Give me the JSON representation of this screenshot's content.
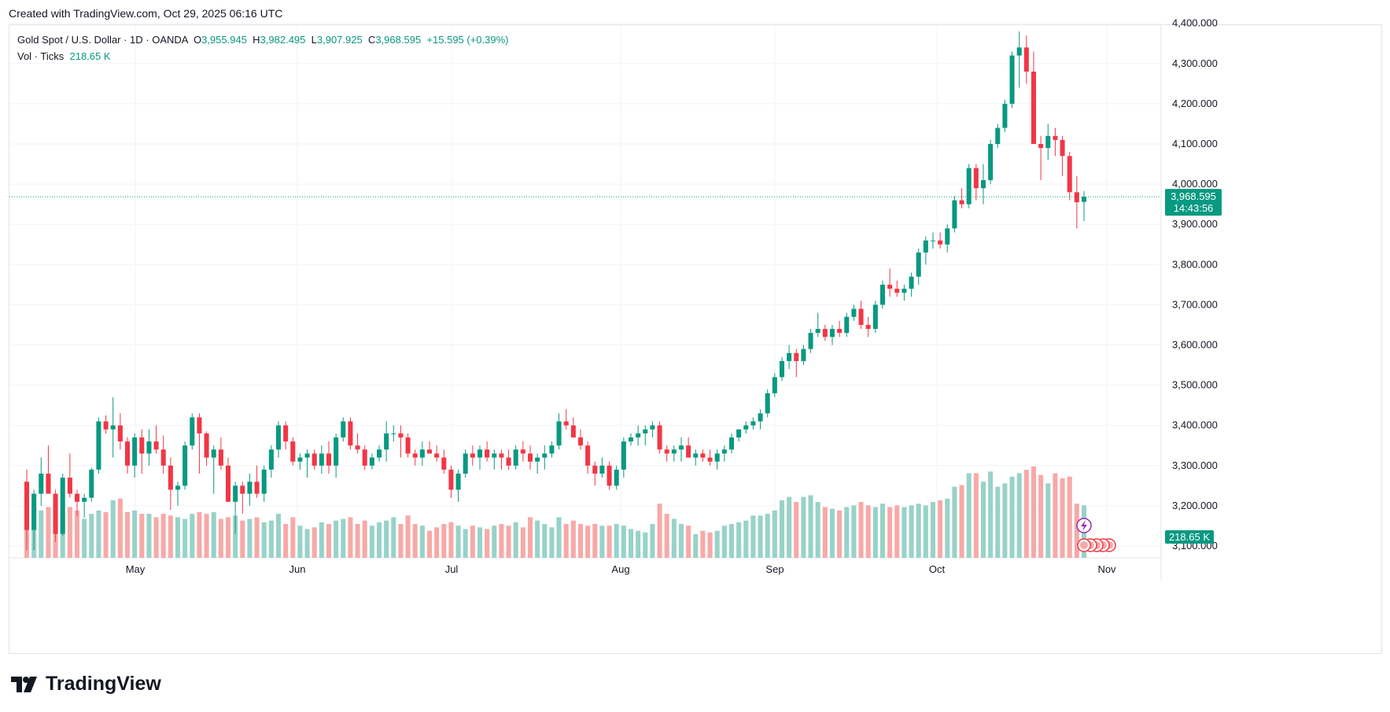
{
  "credit": "Created with TradingView.com, Oct 29, 2025 06:16 UTC",
  "brand": "TradingView",
  "legend": {
    "symbol": "Gold Spot / U.S. Dollar · 1D · OANDA",
    "o_label": "O",
    "o_value": "3,955.945",
    "h_label": "H",
    "h_value": "3,982.495",
    "l_label": "L",
    "l_value": "3,907.925",
    "c_label": "C",
    "c_value": "3,968.595",
    "change": "+15.595 (+0.39%)",
    "vol_label": "Vol · Ticks",
    "vol_value": "218.65 K"
  },
  "price_tag": {
    "price": "3,968.595",
    "countdown": "14:43:56"
  },
  "volume_tag": "218.65 K",
  "colors": {
    "up": "#089981",
    "down": "#f23645",
    "up_vol": "#98d2c8",
    "down_vol": "#f7a9a7",
    "grid": "#f0f3fa"
  },
  "chart_data": {
    "type": "candlestick",
    "x_tick_labels": [
      "May",
      "Jun",
      "Jul",
      "Aug",
      "Sep",
      "Oct",
      "Nov"
    ],
    "y_tick_labels": [
      "3,100.000",
      "3,200.000",
      "3,300.000",
      "3,400.000",
      "3,500.000",
      "3,600.000",
      "3,700.000",
      "3,800.000",
      "3,900.000",
      "4,000.000",
      "4,100.000",
      "4,200.000",
      "4,300.000",
      "4,400.000"
    ],
    "ylim": [
      3070,
      4400
    ],
    "candles": [
      [
        3260,
        3290,
        3090,
        3140,
        145
      ],
      [
        3140,
        3240,
        3090,
        3230,
        160
      ],
      [
        3230,
        3320,
        3200,
        3280,
        140
      ],
      [
        3280,
        3350,
        3230,
        3230,
        150
      ],
      [
        3230,
        3240,
        3110,
        3130,
        105
      ],
      [
        3130,
        3280,
        3125,
        3270,
        135
      ],
      [
        3270,
        3330,
        3220,
        3230,
        150
      ],
      [
        3230,
        3240,
        3175,
        3210,
        140
      ],
      [
        3210,
        3230,
        3170,
        3220,
        115
      ],
      [
        3220,
        3295,
        3210,
        3290,
        130
      ],
      [
        3290,
        3420,
        3280,
        3410,
        140
      ],
      [
        3410,
        3425,
        3380,
        3390,
        135
      ],
      [
        3390,
        3470,
        3320,
        3400,
        170
      ],
      [
        3400,
        3430,
        3340,
        3360,
        175
      ],
      [
        3360,
        3370,
        3280,
        3300,
        135
      ],
      [
        3300,
        3380,
        3270,
        3370,
        140
      ],
      [
        3370,
        3390,
        3280,
        3330,
        130
      ],
      [
        3330,
        3390,
        3300,
        3360,
        130
      ],
      [
        3360,
        3400,
        3330,
        3340,
        120
      ],
      [
        3340,
        3375,
        3280,
        3300,
        130
      ],
      [
        3300,
        3320,
        3190,
        3240,
        125
      ],
      [
        3240,
        3260,
        3200,
        3250,
        120
      ],
      [
        3250,
        3360,
        3240,
        3350,
        115
      ],
      [
        3350,
        3430,
        3340,
        3420,
        130
      ],
      [
        3420,
        3430,
        3280,
        3380,
        135
      ],
      [
        3380,
        3385,
        3300,
        3320,
        130
      ],
      [
        3320,
        3350,
        3230,
        3340,
        135
      ],
      [
        3340,
        3370,
        3290,
        3300,
        115
      ],
      [
        3300,
        3320,
        3210,
        3210,
        120
      ],
      [
        3210,
        3260,
        3130,
        3250,
        125
      ],
      [
        3250,
        3260,
        3180,
        3230,
        110
      ],
      [
        3230,
        3280,
        3200,
        3260,
        115
      ],
      [
        3260,
        3300,
        3220,
        3230,
        120
      ],
      [
        3230,
        3300,
        3210,
        3290,
        105
      ],
      [
        3290,
        3350,
        3270,
        3340,
        110
      ],
      [
        3340,
        3410,
        3320,
        3400,
        130
      ],
      [
        3400,
        3410,
        3340,
        3360,
        100
      ],
      [
        3360,
        3370,
        3300,
        3310,
        120
      ],
      [
        3310,
        3330,
        3290,
        3320,
        95
      ],
      [
        3320,
        3340,
        3270,
        3330,
        85
      ],
      [
        3330,
        3340,
        3290,
        3300,
        90
      ],
      [
        3300,
        3350,
        3280,
        3330,
        105
      ],
      [
        3330,
        3360,
        3280,
        3300,
        100
      ],
      [
        3300,
        3380,
        3270,
        3370,
        110
      ],
      [
        3370,
        3420,
        3360,
        3410,
        115
      ],
      [
        3410,
        3420,
        3340,
        3350,
        120
      ],
      [
        3350,
        3380,
        3330,
        3340,
        100
      ],
      [
        3340,
        3350,
        3290,
        3300,
        110
      ],
      [
        3300,
        3330,
        3290,
        3320,
        95
      ],
      [
        3320,
        3350,
        3310,
        3340,
        105
      ],
      [
        3340,
        3410,
        3310,
        3380,
        110
      ],
      [
        3380,
        3400,
        3360,
        3380,
        120
      ],
      [
        3380,
        3400,
        3320,
        3370,
        100
      ],
      [
        3370,
        3380,
        3320,
        3330,
        125
      ],
      [
        3330,
        3340,
        3300,
        3320,
        100
      ],
      [
        3320,
        3360,
        3300,
        3340,
        95
      ],
      [
        3340,
        3360,
        3330,
        3330,
        80
      ],
      [
        3330,
        3350,
        3310,
        3320,
        90
      ],
      [
        3320,
        3340,
        3280,
        3290,
        100
      ],
      [
        3290,
        3300,
        3220,
        3240,
        105
      ],
      [
        3240,
        3290,
        3210,
        3280,
        95
      ],
      [
        3280,
        3340,
        3270,
        3330,
        85
      ],
      [
        3330,
        3350,
        3300,
        3320,
        95
      ],
      [
        3320,
        3350,
        3290,
        3340,
        90
      ],
      [
        3340,
        3360,
        3310,
        3320,
        85
      ],
      [
        3320,
        3340,
        3290,
        3330,
        95
      ],
      [
        3330,
        3340,
        3290,
        3320,
        100
      ],
      [
        3320,
        3340,
        3290,
        3300,
        95
      ],
      [
        3300,
        3350,
        3290,
        3340,
        105
      ],
      [
        3340,
        3360,
        3310,
        3330,
        90
      ],
      [
        3330,
        3350,
        3290,
        3310,
        120
      ],
      [
        3310,
        3330,
        3280,
        3320,
        110
      ],
      [
        3320,
        3350,
        3290,
        3330,
        100
      ],
      [
        3330,
        3360,
        3320,
        3350,
        90
      ],
      [
        3350,
        3430,
        3340,
        3410,
        120
      ],
      [
        3410,
        3440,
        3390,
        3400,
        100
      ],
      [
        3400,
        3420,
        3370,
        3370,
        110
      ],
      [
        3370,
        3390,
        3340,
        3350,
        100
      ],
      [
        3350,
        3360,
        3280,
        3300,
        95
      ],
      [
        3300,
        3310,
        3250,
        3280,
        100
      ],
      [
        3280,
        3320,
        3270,
        3300,
        95
      ],
      [
        3300,
        3310,
        3240,
        3250,
        95
      ],
      [
        3250,
        3300,
        3240,
        3290,
        100
      ],
      [
        3290,
        3370,
        3270,
        3360,
        95
      ],
      [
        3360,
        3380,
        3350,
        3370,
        85
      ],
      [
        3370,
        3400,
        3350,
        3380,
        80
      ],
      [
        3380,
        3400,
        3350,
        3390,
        75
      ],
      [
        3390,
        3410,
        3370,
        3400,
        100
      ],
      [
        3400,
        3410,
        3330,
        3340,
        160
      ],
      [
        3340,
        3350,
        3310,
        3330,
        130
      ],
      [
        3330,
        3350,
        3310,
        3340,
        115
      ],
      [
        3340,
        3370,
        3310,
        3350,
        100
      ],
      [
        3350,
        3370,
        3320,
        3320,
        95
      ],
      [
        3320,
        3340,
        3300,
        3330,
        70
      ],
      [
        3330,
        3340,
        3310,
        3320,
        80
      ],
      [
        3320,
        3340,
        3300,
        3310,
        75
      ],
      [
        3310,
        3340,
        3290,
        3330,
        80
      ],
      [
        3330,
        3350,
        3310,
        3340,
        95
      ],
      [
        3340,
        3380,
        3330,
        3370,
        100
      ],
      [
        3370,
        3390,
        3360,
        3390,
        105
      ],
      [
        3390,
        3410,
        3380,
        3400,
        110
      ],
      [
        3400,
        3420,
        3390,
        3410,
        125
      ],
      [
        3410,
        3440,
        3390,
        3430,
        125
      ],
      [
        3430,
        3490,
        3420,
        3480,
        130
      ],
      [
        3480,
        3530,
        3470,
        3520,
        140
      ],
      [
        3520,
        3570,
        3510,
        3560,
        170
      ],
      [
        3560,
        3600,
        3540,
        3580,
        180
      ],
      [
        3580,
        3590,
        3520,
        3560,
        165
      ],
      [
        3560,
        3600,
        3550,
        3590,
        180
      ],
      [
        3590,
        3640,
        3580,
        3630,
        185
      ],
      [
        3630,
        3680,
        3620,
        3640,
        165
      ],
      [
        3640,
        3650,
        3610,
        3620,
        150
      ],
      [
        3620,
        3650,
        3600,
        3640,
        145
      ],
      [
        3640,
        3660,
        3620,
        3630,
        140
      ],
      [
        3630,
        3680,
        3620,
        3670,
        150
      ],
      [
        3670,
        3700,
        3660,
        3690,
        155
      ],
      [
        3690,
        3710,
        3640,
        3650,
        165
      ],
      [
        3650,
        3670,
        3620,
        3640,
        155
      ],
      [
        3640,
        3710,
        3630,
        3700,
        150
      ],
      [
        3700,
        3760,
        3690,
        3750,
        160
      ],
      [
        3750,
        3790,
        3720,
        3740,
        150
      ],
      [
        3740,
        3760,
        3720,
        3730,
        155
      ],
      [
        3730,
        3750,
        3710,
        3740,
        150
      ],
      [
        3740,
        3780,
        3720,
        3770,
        155
      ],
      [
        3770,
        3840,
        3750,
        3830,
        160
      ],
      [
        3830,
        3870,
        3800,
        3860,
        155
      ],
      [
        3860,
        3880,
        3840,
        3860,
        165
      ],
      [
        3860,
        3880,
        3840,
        3850,
        170
      ],
      [
        3850,
        3900,
        3830,
        3890,
        175
      ],
      [
        3890,
        3970,
        3880,
        3960,
        210
      ],
      [
        3960,
        3990,
        3940,
        3950,
        215
      ],
      [
        3950,
        4050,
        3940,
        4040,
        250
      ],
      [
        4040,
        4050,
        3960,
        3990,
        250
      ],
      [
        3990,
        4050,
        3950,
        4010,
        225
      ],
      [
        4010,
        4110,
        4000,
        4100,
        255
      ],
      [
        4100,
        4150,
        4090,
        4140,
        210
      ],
      [
        4140,
        4210,
        4130,
        4200,
        220
      ],
      [
        4200,
        4330,
        4190,
        4320,
        240
      ],
      [
        4320,
        4380,
        4240,
        4340,
        250
      ],
      [
        4340,
        4370,
        4250,
        4280,
        260
      ],
      [
        4280,
        4330,
        4100,
        4100,
        270
      ],
      [
        4100,
        4120,
        4010,
        4090,
        245
      ],
      [
        4090,
        4150,
        4060,
        4120,
        220
      ],
      [
        4120,
        4140,
        4070,
        4110,
        250
      ],
      [
        4110,
        4120,
        4020,
        4070,
        235
      ],
      [
        4070,
        4080,
        3960,
        3980,
        240
      ],
      [
        3980,
        4020,
        3890,
        3955,
        160
      ],
      [
        3955.945,
        3982.495,
        3907.925,
        3968.595,
        155
      ]
    ]
  }
}
